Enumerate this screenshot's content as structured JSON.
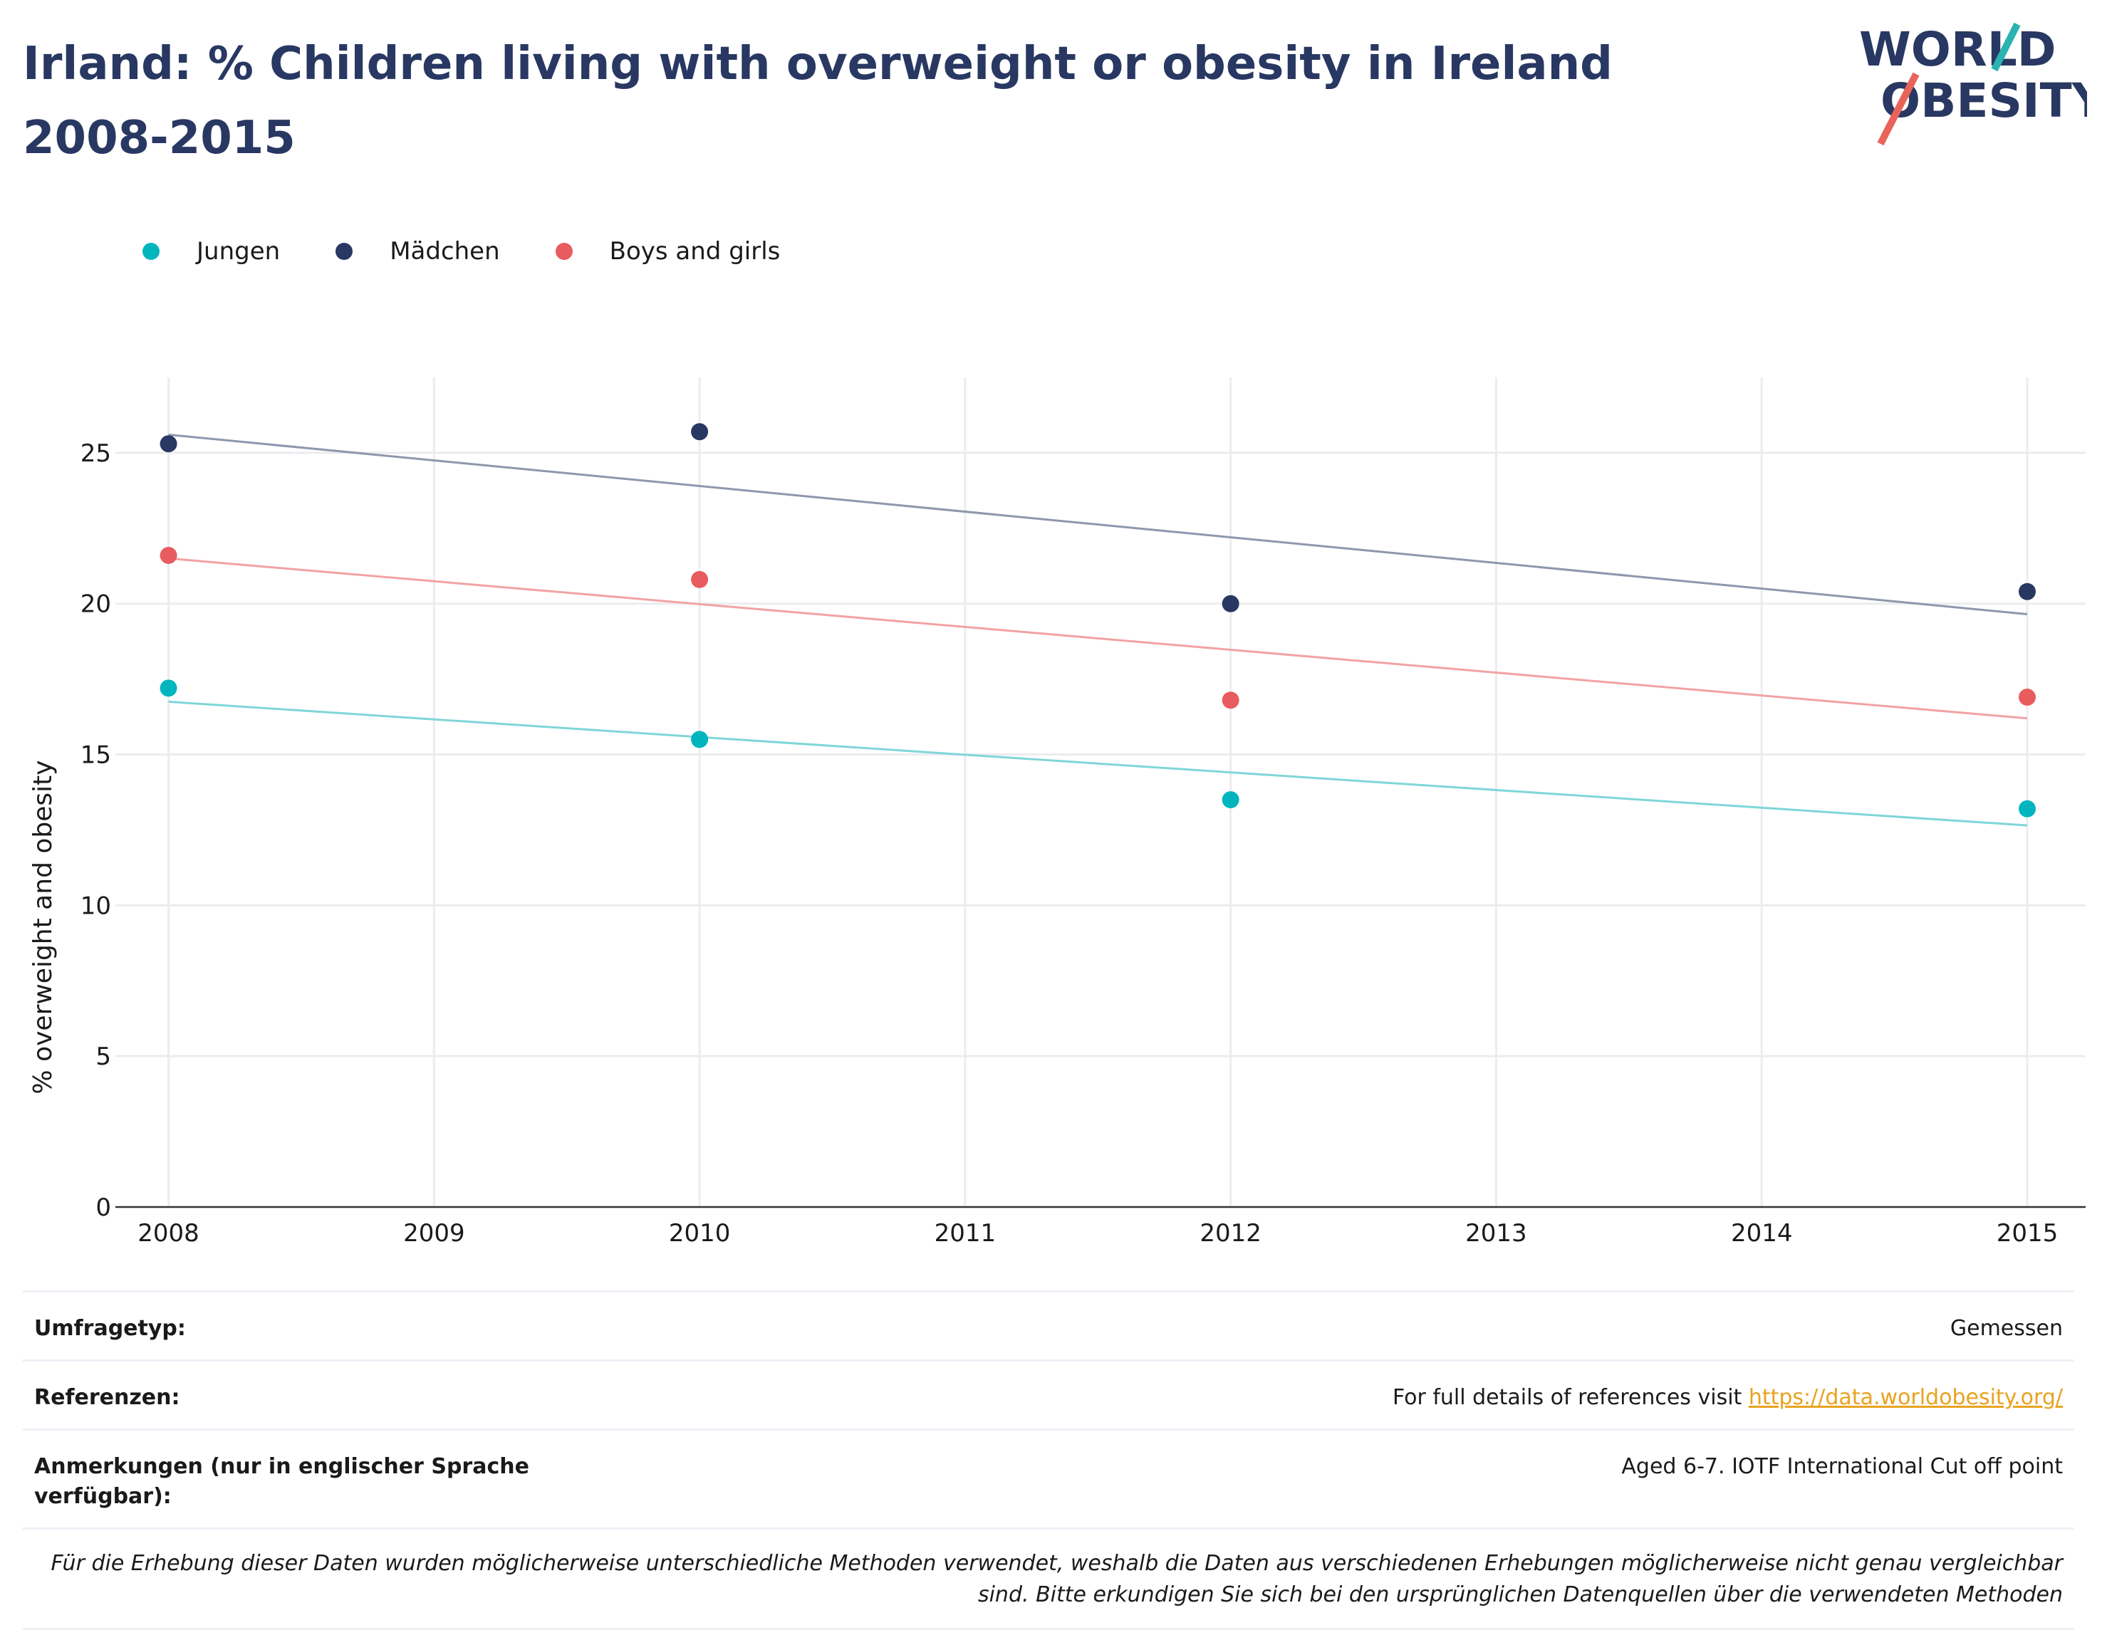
{
  "title": "Irland: % Children living with overweight or obesity in Ireland 2008-2015",
  "logo": {
    "line1": "WORLD",
    "line2": "OBESITY",
    "teal": "#2ab3b1",
    "coral": "#e8645a"
  },
  "legend": [
    {
      "label": "Jungen",
      "color": "#00b5be"
    },
    {
      "label": "Mädchen",
      "color": "#283862"
    },
    {
      "label": "Boys and girls",
      "color": "#e85b5e"
    }
  ],
  "chart_data": {
    "type": "scatter",
    "title": "Irland: % Children living with overweight or obesity in Ireland 2008-2015",
    "xlabel": "",
    "ylabel": "% overweight and obesity",
    "xlim": [
      2007.8,
      2015.22
    ],
    "ylim": [
      0,
      27.5
    ],
    "xticks": [
      2008,
      2009,
      2010,
      2011,
      2012,
      2013,
      2014,
      2015
    ],
    "yticks": [
      0,
      5,
      10,
      15,
      20,
      25
    ],
    "grid": true,
    "legend_position": "top-left",
    "series": [
      {
        "name": "Jungen",
        "color": "#00b5be",
        "trend_color": "#7fd6da",
        "x": [
          2008,
          2010,
          2012,
          2015
        ],
        "y": [
          17.2,
          15.5,
          13.5,
          13.2
        ],
        "trend": {
          "x": [
            2008,
            2015
          ],
          "y": [
            16.75,
            12.65
          ]
        }
      },
      {
        "name": "Mädchen",
        "color": "#283862",
        "trend_color": "#8e97ad",
        "x": [
          2008,
          2010,
          2012,
          2015
        ],
        "y": [
          25.3,
          25.7,
          20.0,
          20.4
        ],
        "trend": {
          "x": [
            2008,
            2015
          ],
          "y": [
            25.6,
            19.65
          ]
        }
      },
      {
        "name": "Boys and girls",
        "color": "#e85b5e",
        "trend_color": "#f2a3a3",
        "x": [
          2008,
          2010,
          2012,
          2015
        ],
        "y": [
          21.6,
          20.8,
          16.8,
          16.9
        ],
        "trend": {
          "x": [
            2008,
            2015
          ],
          "y": [
            21.5,
            16.2
          ]
        }
      }
    ]
  },
  "info": {
    "survey_type_label": "Umfragetyp:",
    "survey_type_value": "Gemessen",
    "references_label": "Referenzen:",
    "references_text": "For full details of references visit ",
    "references_link": "https://data.worldobesity.org/",
    "notes_label": "Anmerkungen (nur in englischer Sprache verfügbar):",
    "notes_value": "Aged 6-7. IOTF International Cut off point",
    "disclaimer": "Für die Erhebung dieser Daten wurden möglicherweise unterschiedliche Methoden verwendet, weshalb die Daten aus verschiedenen Erhebungen möglicherweise nicht genau vergleichbar sind. Bitte erkundigen Sie sich bei den ursprünglichen Datenquellen über die verwendeten Methoden"
  }
}
